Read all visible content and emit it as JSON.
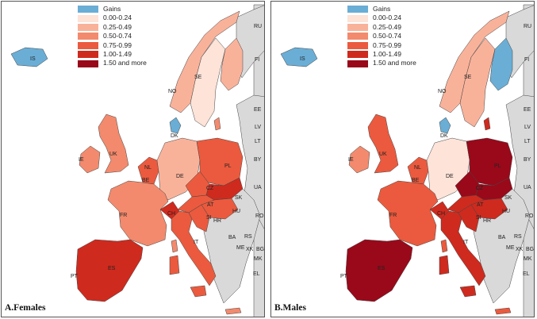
{
  "legend": {
    "items": [
      {
        "label": "Gains",
        "color": "#6aaed6"
      },
      {
        "label": "0.00-0.24",
        "color": "#fde3d8"
      },
      {
        "label": "0.25-0.49",
        "color": "#f9b29a"
      },
      {
        "label": "0.50-0.74",
        "color": "#f38a6d"
      },
      {
        "label": "0.75-0.99",
        "color": "#eb5a3e"
      },
      {
        "label": "1.00-1.49",
        "color": "#cf2a1e"
      },
      {
        "label": "1.50 and more",
        "color": "#99091a"
      }
    ]
  },
  "colors": {
    "sea": "#ffffff",
    "nonstudy": "#d9d9d9",
    "border": "#444444"
  },
  "country_labels": [
    "IS",
    "NO",
    "SE",
    "FI",
    "RU",
    "EE",
    "LV",
    "LT",
    "BY",
    "UA",
    "DK",
    "UK",
    "IE",
    "NL",
    "BE",
    "DE",
    "PL",
    "CZ",
    "SK",
    "FR",
    "CH",
    "AT",
    "HU",
    "SI",
    "HR",
    "RO",
    "IT",
    "BA",
    "RS",
    "ME",
    "XK",
    "BG",
    "MK",
    "EL",
    "PT",
    "ES"
  ],
  "panels": [
    {
      "title": "A.Females",
      "regions": {
        "iceland": "Gains",
        "norway": "0.25-0.49",
        "sweden": "0.00-0.24",
        "finland": "0.25-0.49",
        "denmark": "Gains",
        "uk": "0.50-0.74",
        "ireland": "0.50-0.74",
        "benelux": "0.75-0.99",
        "germany": "0.25-0.49",
        "poland": "0.75-0.99",
        "czechia": "0.75-0.99",
        "slovakia": "1.00-1.49",
        "hungary": "0.75-0.99",
        "austria": "0.75-0.99",
        "switzerland": "1.00-1.49",
        "slovenia_croatia": "0.75-0.99",
        "france": "0.50-0.74",
        "italy": "0.75-0.99",
        "iberia": "1.00-1.49",
        "baltic": "0.50-0.74",
        "corsica": "0.50-0.74",
        "sardinia": "0.75-0.99",
        "sicily": "0.75-0.99",
        "crete_cyprus": "0.50-0.74"
      }
    },
    {
      "title": "B.Males",
      "regions": {
        "iceland": "Gains",
        "norway": "0.25-0.49",
        "sweden": "0.25-0.49",
        "finland": "Gains",
        "denmark": "Gains",
        "uk": "0.75-0.99",
        "ireland": "0.50-0.74",
        "benelux": "0.75-0.99",
        "germany": "0.00-0.24",
        "poland": "1.50 and more",
        "czechia": "1.50 and more",
        "slovakia": "1.50 and more",
        "hungary": "1.00-1.49",
        "austria": "1.00-1.49",
        "switzerland": "1.00-1.49",
        "slovenia_croatia": "1.00-1.49",
        "france": "0.75-0.99",
        "italy": "1.00-1.49",
        "iberia": "1.50 and more",
        "baltic": "1.00-1.49",
        "corsica": "0.75-0.99",
        "sardinia": "1.00-1.49",
        "sicily": "1.00-1.49",
        "crete_cyprus": "0.75-0.99"
      }
    }
  ]
}
